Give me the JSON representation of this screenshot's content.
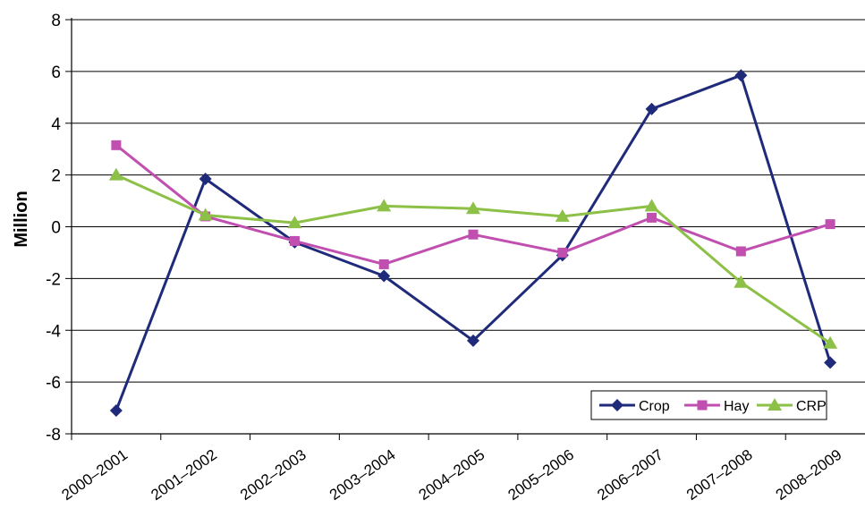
{
  "chart_data": {
    "type": "line",
    "title": "",
    "xlabel": "",
    "ylabel": "Million",
    "ylim": [
      -8,
      8
    ],
    "yticks": [
      "8",
      "6",
      "4",
      "2",
      "0",
      "-2",
      "-4",
      "-6",
      "-8"
    ],
    "categories": [
      "2000–2001",
      "2001–2002",
      "2002–2003",
      "2003–2004",
      "2004–2005",
      "2005–2006",
      "2006–2007",
      "2007–2008",
      "2008–2009"
    ],
    "grid": true,
    "legend_position": "bottom-right",
    "series": [
      {
        "name": "Crop",
        "color": "#1f2a7a",
        "marker": "diamond",
        "values": [
          -7.1,
          1.85,
          -0.6,
          -1.9,
          -4.4,
          -1.1,
          4.55,
          5.85,
          -5.25
        ]
      },
      {
        "name": "Hay",
        "color": "#c04fb0",
        "marker": "square",
        "values": [
          3.15,
          0.4,
          -0.55,
          -1.45,
          -0.3,
          -1.0,
          0.35,
          -0.95,
          0.1
        ]
      },
      {
        "name": "CRP",
        "color": "#8cc047",
        "marker": "triangle",
        "values": [
          2.0,
          0.45,
          0.15,
          0.8,
          0.7,
          0.4,
          0.8,
          -2.15,
          -4.5
        ]
      }
    ]
  }
}
